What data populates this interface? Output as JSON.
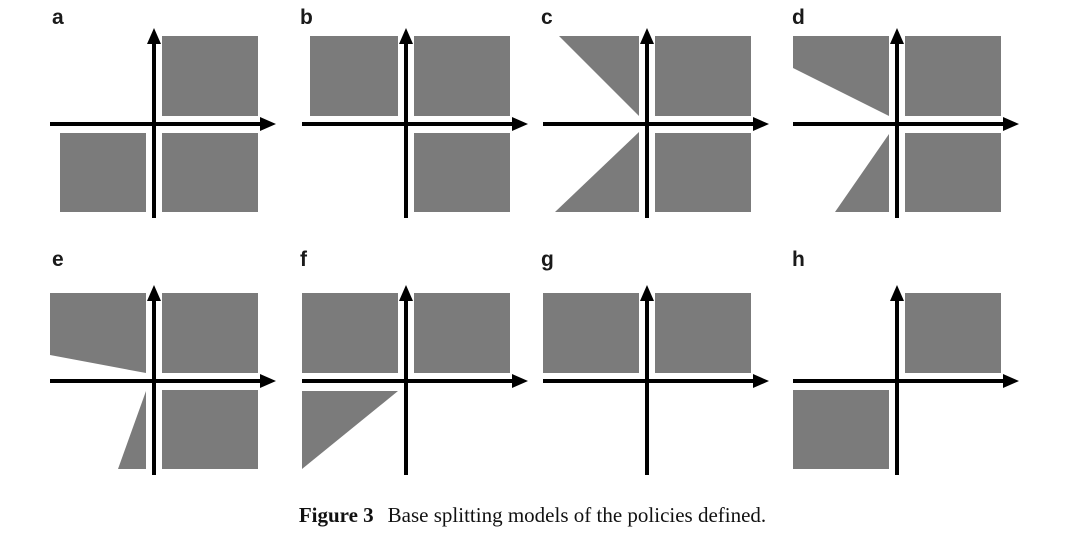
{
  "panels": [
    {
      "label": "a",
      "regions": [
        "top-right square",
        "bottom-left square",
        "bottom-right square"
      ]
    },
    {
      "label": "b",
      "regions": [
        "top-left square",
        "top-right square",
        "bottom-right square"
      ]
    },
    {
      "label": "c",
      "regions": [
        "top-left triangle",
        "top-right square",
        "bottom-left triangle",
        "bottom-right square"
      ]
    },
    {
      "label": "d",
      "regions": [
        "top-left triangle",
        "top-right square",
        "bottom-left triangle",
        "bottom-right square"
      ]
    },
    {
      "label": "e",
      "regions": [
        "top-left wedge",
        "top-right square",
        "bottom-left wedge",
        "bottom-right square"
      ]
    },
    {
      "label": "f",
      "regions": [
        "top-left square",
        "top-right square",
        "bottom-left triangle"
      ]
    },
    {
      "label": "g",
      "regions": [
        "top-left square",
        "top-right square"
      ]
    },
    {
      "label": "h",
      "regions": [
        "top-right square",
        "bottom-left square"
      ]
    }
  ],
  "caption": {
    "label": "Figure 3",
    "text": "Base splitting models of the policies defined."
  },
  "colors": {
    "region_fill": "#7b7b7b",
    "axis": "#000000",
    "background": "#ffffff"
  }
}
